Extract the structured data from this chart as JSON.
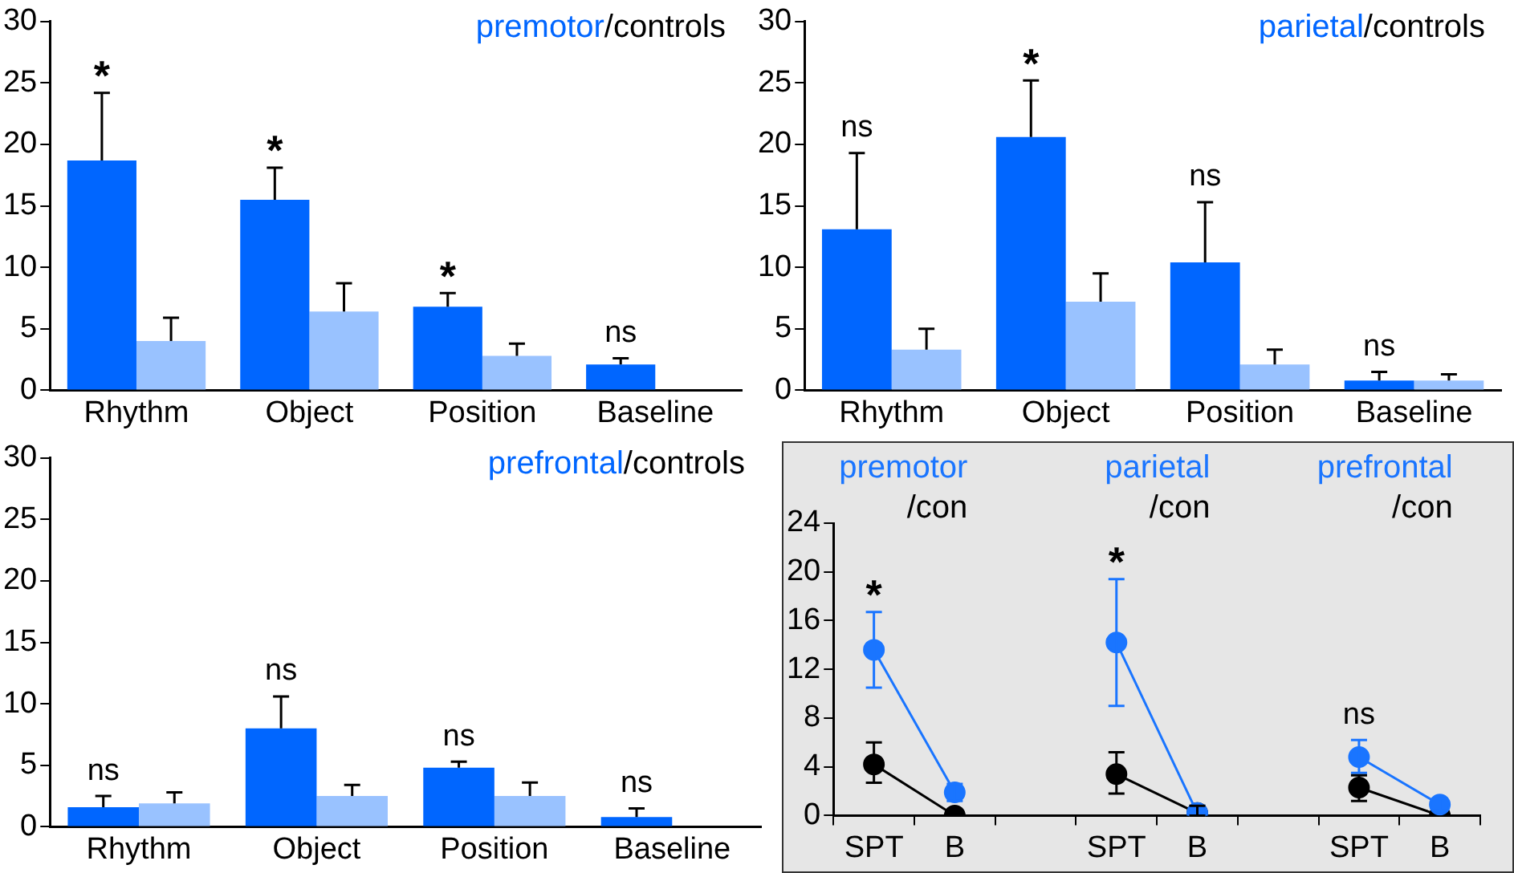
{
  "chart_data": [
    {
      "type": "bar",
      "title": "premotor/controls",
      "categories": [
        "Rhythm",
        "Object",
        "Position",
        "Baseline"
      ],
      "ylim": [
        0,
        30
      ],
      "yticks": [
        0,
        5,
        10,
        15,
        20,
        25,
        30
      ],
      "series": [
        {
          "color": "#0066ff",
          "values": [
            18.7,
            15.5,
            6.8,
            2.1
          ],
          "errors": [
            [
              18.7,
              24.2
            ],
            [
              15.5,
              18.1
            ],
            [
              6.8,
              7.9
            ],
            [
              2.1,
              2.6
            ]
          ]
        },
        {
          "color": "#99c2ff",
          "values": [
            4.0,
            6.4,
            2.8,
            0
          ],
          "errors": [
            [
              4.0,
              5.9
            ],
            [
              6.4,
              8.7
            ],
            [
              2.8,
              3.8
            ],
            null
          ]
        }
      ],
      "annotations": [
        "*",
        "*",
        "*",
        "ns"
      ]
    },
    {
      "type": "bar",
      "title": "parietal/controls",
      "categories": [
        "Rhythm",
        "Object",
        "Position",
        "Baseline"
      ],
      "ylim": [
        0,
        30
      ],
      "yticks": [
        0,
        5,
        10,
        15,
        20,
        25,
        30
      ],
      "series": [
        {
          "color": "#0066ff",
          "values": [
            13.1,
            20.6,
            10.4,
            0.8
          ],
          "errors": [
            [
              13.1,
              19.3
            ],
            [
              20.6,
              25.2
            ],
            [
              10.4,
              15.3
            ],
            [
              0.8,
              1.5
            ]
          ]
        },
        {
          "color": "#99c2ff",
          "values": [
            3.3,
            7.2,
            2.1,
            0.8
          ],
          "errors": [
            [
              3.3,
              5.0
            ],
            [
              7.2,
              9.5
            ],
            [
              2.1,
              3.3
            ],
            [
              0.8,
              1.3
            ]
          ]
        }
      ],
      "annotations": [
        "ns",
        "*",
        "ns",
        "ns"
      ]
    },
    {
      "type": "bar",
      "title": "prefrontal/controls",
      "categories": [
        "Rhythm",
        "Object",
        "Position",
        "Baseline"
      ],
      "ylim": [
        0,
        30
      ],
      "yticks": [
        0,
        5,
        10,
        15,
        20,
        25,
        30
      ],
      "series": [
        {
          "color": "#0066ff",
          "values": [
            1.6,
            8.0,
            4.8,
            0.8
          ],
          "errors": [
            [
              1.6,
              2.5
            ],
            [
              8.0,
              10.6
            ],
            [
              4.8,
              5.3
            ],
            [
              0.8,
              1.5
            ]
          ]
        },
        {
          "color": "#99c2ff",
          "values": [
            1.9,
            2.5,
            2.5,
            0
          ],
          "errors": [
            [
              1.9,
              2.8
            ],
            [
              2.5,
              3.4
            ],
            [
              2.5,
              3.6
            ],
            null
          ]
        }
      ],
      "annotations": [
        "ns",
        "ns",
        "ns",
        "ns"
      ]
    },
    {
      "type": "line",
      "categories": [
        "SPT",
        "B",
        null,
        "SPT",
        "B",
        null,
        "SPT",
        "B"
      ],
      "ylim": [
        0,
        24
      ],
      "yticks": [
        0,
        4,
        8,
        12,
        16,
        20,
        24
      ],
      "marker": "circle",
      "series": [
        {
          "color": "#1a75ff",
          "values": [
            13.6,
            1.9,
            null,
            14.2,
            0.2,
            null,
            4.8,
            0.9
          ],
          "errors": [
            [
              10.5,
              16.7
            ],
            [
              1.2,
              2.6
            ],
            null,
            [
              9.0,
              19.4
            ],
            [
              0,
              0.8
            ],
            null,
            [
              3.5,
              6.2
            ],
            [
              0.4,
              1.4
            ]
          ]
        },
        {
          "color": "#000000",
          "values": [
            4.2,
            0,
            null,
            3.4,
            0.2,
            null,
            2.3,
            0
          ],
          "errors": [
            [
              2.7,
              6.0
            ],
            null,
            null,
            [
              1.8,
              5.2
            ],
            [
              0,
              0.8
            ],
            null,
            [
              1.2,
              3.3
            ],
            null
          ]
        }
      ],
      "annotations": [
        "premotor",
        "/con",
        "parietal",
        "/con",
        "prefrontal",
        "/con",
        "*",
        "*",
        "ns"
      ]
    }
  ]
}
